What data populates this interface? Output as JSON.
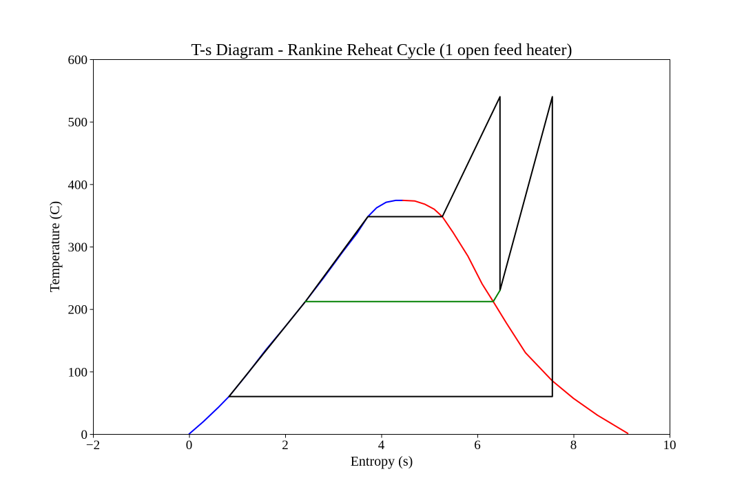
{
  "chart_data": {
    "type": "line",
    "title": "T-s Diagram - Rankine Reheat Cycle (1 open feed heater)",
    "xlabel": "Entropy (s)",
    "ylabel": "Temperature (C)",
    "xlim": [
      -2,
      10
    ],
    "ylim": [
      0,
      600
    ],
    "xticks": [
      -2,
      0,
      2,
      4,
      6,
      8,
      10
    ],
    "yticks": [
      0,
      100,
      200,
      300,
      400,
      500,
      600
    ],
    "xtick_labels": [
      "−2",
      "0",
      "2",
      "4",
      "6",
      "8",
      "10"
    ],
    "ytick_labels": [
      "0",
      "100",
      "200",
      "300",
      "400",
      "500",
      "600"
    ],
    "grid": false,
    "legend": false,
    "series": [
      {
        "color": "#0000ff",
        "points": [
          [
            0.0,
            0
          ],
          [
            0.3,
            20
          ],
          [
            0.6,
            42
          ],
          [
            0.83,
            60
          ],
          [
            1.2,
            95
          ],
          [
            1.6,
            135
          ],
          [
            2.0,
            172
          ],
          [
            2.42,
            212
          ],
          [
            2.8,
            250
          ],
          [
            3.2,
            292
          ],
          [
            3.5,
            322
          ],
          [
            3.72,
            348
          ],
          [
            3.9,
            362
          ],
          [
            4.1,
            371
          ],
          [
            4.3,
            374
          ],
          [
            4.45,
            374
          ]
        ]
      },
      {
        "color": "#ff0000",
        "points": [
          [
            4.45,
            374
          ],
          [
            4.7,
            373
          ],
          [
            4.9,
            368
          ],
          [
            5.1,
            360
          ],
          [
            5.27,
            348
          ],
          [
            5.5,
            322
          ],
          [
            5.8,
            285
          ],
          [
            6.1,
            240
          ],
          [
            6.33,
            212
          ],
          [
            6.6,
            178
          ],
          [
            7.0,
            130
          ],
          [
            7.56,
            85
          ],
          [
            8.0,
            57
          ],
          [
            8.5,
            30
          ],
          [
            9.13,
            1
          ]
        ]
      },
      {
        "color": "#000000",
        "points": [
          [
            0.83,
            60
          ],
          [
            2.42,
            212
          ],
          [
            3.72,
            348
          ],
          [
            5.27,
            348
          ],
          [
            6.47,
            540
          ],
          [
            6.47,
            230
          ]
        ]
      },
      {
        "color": "#000000",
        "points": [
          [
            6.47,
            230
          ],
          [
            7.56,
            540
          ],
          [
            7.56,
            60
          ],
          [
            0.83,
            60
          ]
        ]
      },
      {
        "color": "#008000",
        "points": [
          [
            2.42,
            212
          ],
          [
            6.33,
            212
          ],
          [
            6.47,
            230
          ]
        ]
      }
    ]
  }
}
